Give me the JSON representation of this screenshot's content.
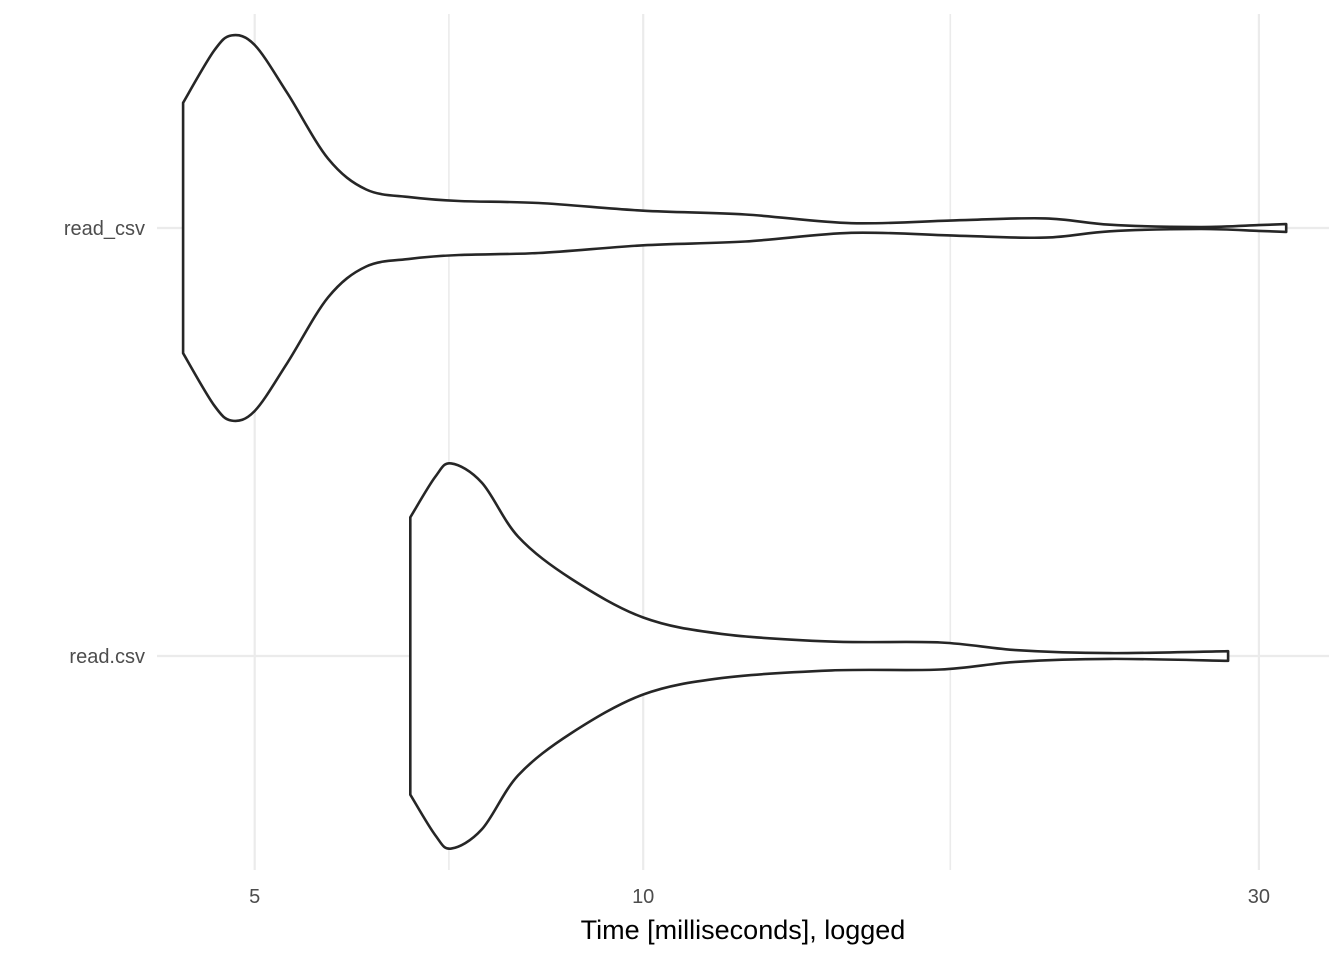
{
  "chart_data": {
    "type": "violin",
    "title": "",
    "xlabel": "Time [milliseconds], logged",
    "ylabel": "",
    "x_scale": "log10",
    "xlim": [
      4.2,
      34
    ],
    "x_ticks": [
      5,
      10,
      30
    ],
    "x_tick_labels": [
      "5",
      "10",
      "30"
    ],
    "x_minor_gridlines": [
      7.07,
      17.3
    ],
    "grid": true,
    "legend": "none",
    "categories": [
      "read_csv",
      "read.csv"
    ],
    "series": [
      {
        "category": "read_csv",
        "min": 4.4,
        "max": 31.5,
        "density": [
          {
            "x": 4.4,
            "w": 0.65
          },
          {
            "x": 4.65,
            "w": 0.92
          },
          {
            "x": 4.8,
            "w": 1.0
          },
          {
            "x": 5.0,
            "w": 0.95
          },
          {
            "x": 5.3,
            "w": 0.7
          },
          {
            "x": 5.7,
            "w": 0.36
          },
          {
            "x": 6.1,
            "w": 0.2
          },
          {
            "x": 6.6,
            "w": 0.16
          },
          {
            "x": 7.2,
            "w": 0.14
          },
          {
            "x": 8.3,
            "w": 0.13
          },
          {
            "x": 10.0,
            "w": 0.09
          },
          {
            "x": 12.0,
            "w": 0.07
          },
          {
            "x": 14.5,
            "w": 0.025
          },
          {
            "x": 17.5,
            "w": 0.04
          },
          {
            "x": 20.5,
            "w": 0.05
          },
          {
            "x": 23.0,
            "w": 0.017
          },
          {
            "x": 27.0,
            "w": 0.005
          },
          {
            "x": 30.0,
            "w": 0.015
          },
          {
            "x": 31.5,
            "w": 0.02
          }
        ]
      },
      {
        "category": "read.csv",
        "min": 6.6,
        "max": 28.4,
        "density": [
          {
            "x": 6.6,
            "w": 0.72
          },
          {
            "x": 6.9,
            "w": 0.93
          },
          {
            "x": 7.1,
            "w": 1.0
          },
          {
            "x": 7.5,
            "w": 0.9
          },
          {
            "x": 8.0,
            "w": 0.62
          },
          {
            "x": 8.8,
            "w": 0.4
          },
          {
            "x": 10.0,
            "w": 0.2
          },
          {
            "x": 11.5,
            "w": 0.115
          },
          {
            "x": 14.0,
            "w": 0.075
          },
          {
            "x": 17.0,
            "w": 0.07
          },
          {
            "x": 19.5,
            "w": 0.03
          },
          {
            "x": 23.0,
            "w": 0.015
          },
          {
            "x": 28.4,
            "w": 0.025
          }
        ]
      }
    ]
  }
}
